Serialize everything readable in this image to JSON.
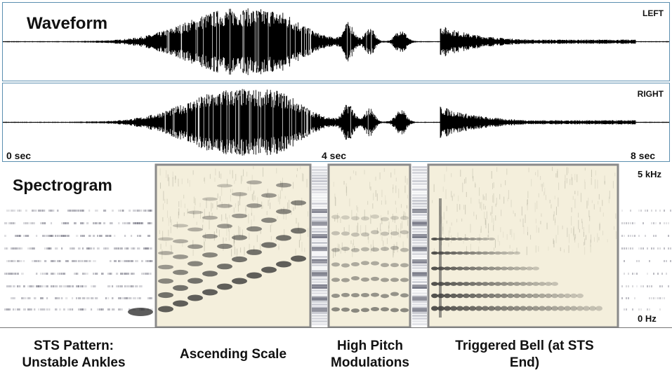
{
  "waveform": {
    "title": "Waveform",
    "channels": {
      "left": "LEFT",
      "right": "RIGHT"
    },
    "time_labels": {
      "start": "0 sec",
      "mid": "4 sec",
      "end": "8 sec"
    }
  },
  "spectrogram": {
    "title": "Spectrogram",
    "freq_labels": {
      "top": "5 kHz",
      "bottom": "0 Hz"
    }
  },
  "sections": [
    {
      "line1": "STS Pattern:",
      "line2": "Unstable Ankles"
    },
    {
      "line1": "Ascending Scale",
      "line2": ""
    },
    {
      "line1": "High Pitch",
      "line2": "Modulations"
    },
    {
      "line1": "Triggered Bell (at STS",
      "line2": "End)"
    }
  ],
  "colors": {
    "waveform_border": "#5b8fb0",
    "waveform_ink": "#000000",
    "highlight_fill": "#f4efdc",
    "highlight_border": "#8a8a8a"
  }
}
